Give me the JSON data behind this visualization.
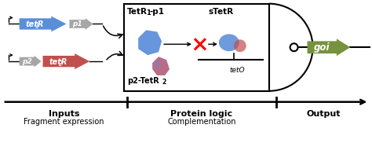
{
  "bg_color": "#ffffff",
  "arrow_color": "#000000",
  "blue_color": "#5b8dd9",
  "red_color": "#c0504d",
  "gray_color": "#a6a6a6",
  "green_color": "#76923c",
  "box_color": "#000000",
  "bottom_labels": {
    "inputs_bold": "Inputs",
    "inputs_sub": "Fragment expression",
    "protein_bold": "Protein logic",
    "protein_sub": "Complementation",
    "output_bold": "Output"
  },
  "tetr1_label": "tetR",
  "tetr1_sub": "1",
  "p1_label": "p1",
  "p2_label": "p2",
  "tetr2_label": "tetR",
  "tetr2_sub": "2",
  "box_label1a": "TetR",
  "box_label1b": "1",
  "box_label1c": "-p1",
  "box_label2": "sTetR",
  "teto_label": "tetO",
  "p2tetr2_label": "p2-TetR",
  "p2tetr2_sub": "2",
  "goi_label": "goi"
}
